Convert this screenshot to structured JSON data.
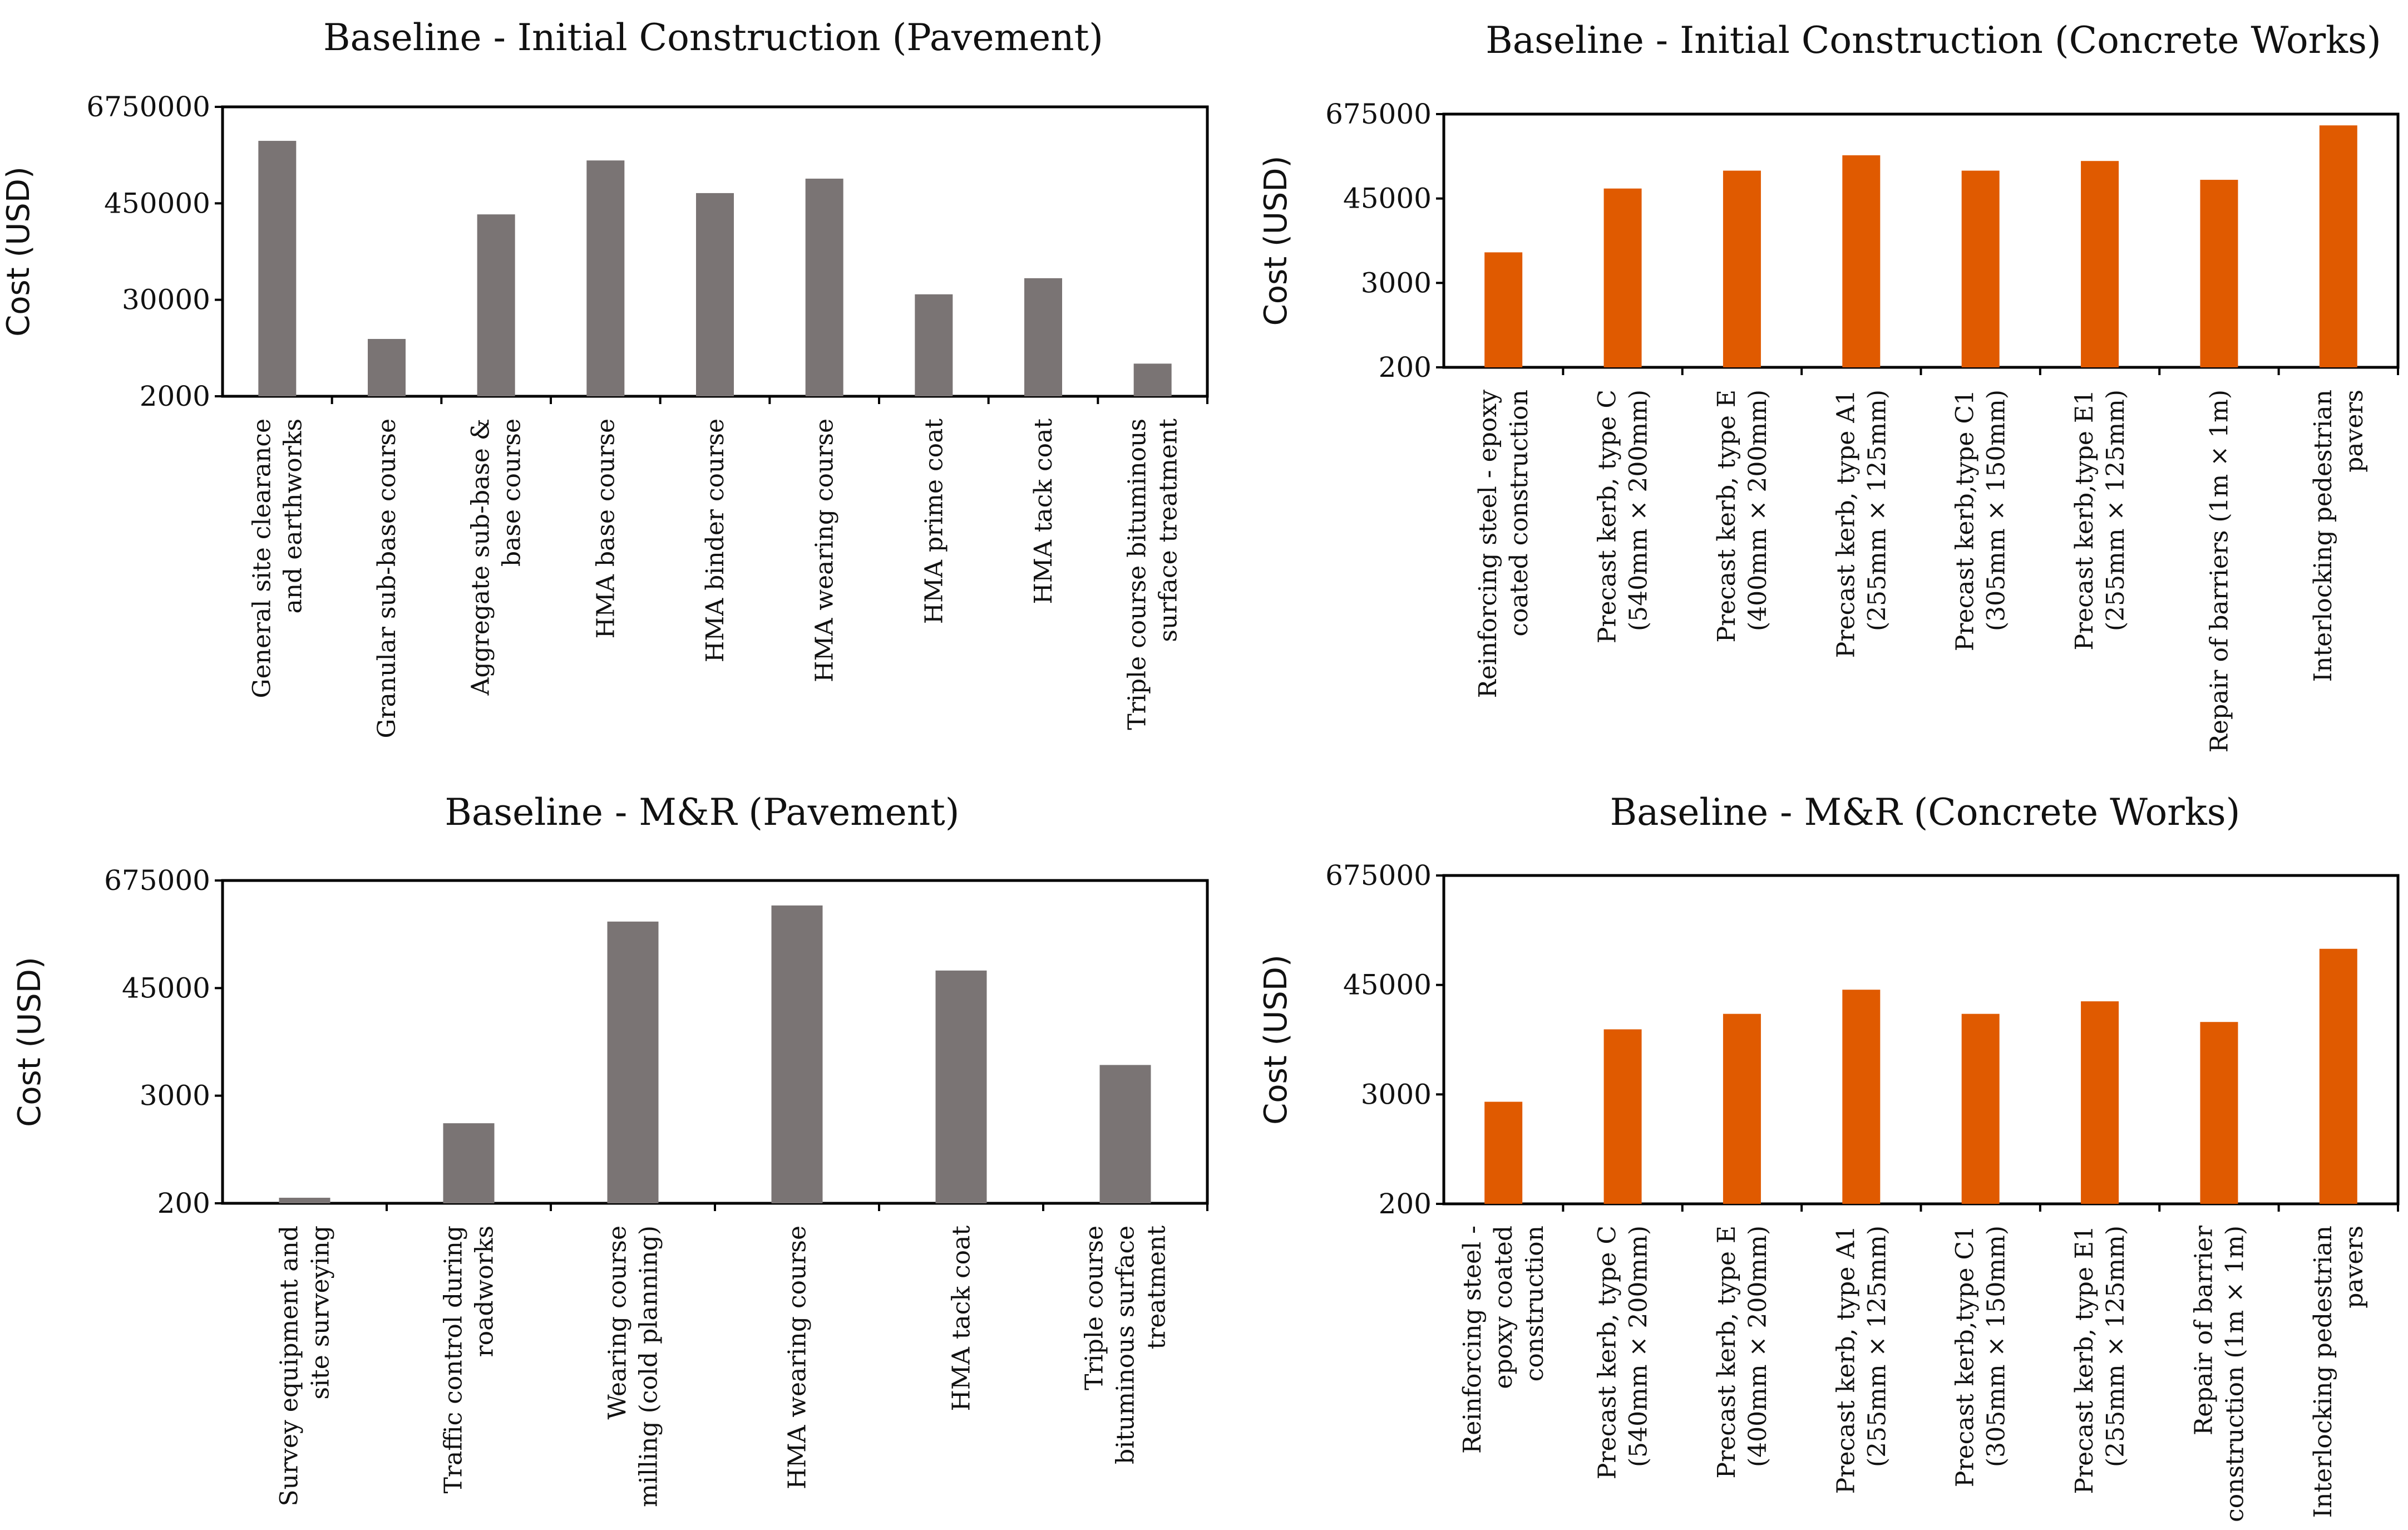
{
  "chart_data": [
    {
      "type": "bar",
      "title": "Baseline - Initial Construction (Pavement)",
      "ylabel": "Cost (USD)",
      "xlabel": "",
      "yscale": "log",
      "ylim": [
        2000,
        6750000
      ],
      "yticks": [
        "2000",
        "30000",
        "450000",
        "6750000"
      ],
      "color": "#7a7474",
      "categories": [
        [
          "General site clearance",
          "and earthworks"
        ],
        [
          "Granular sub-base course"
        ],
        [
          "Aggregate sub-base &",
          "base course"
        ],
        [
          "HMA base course"
        ],
        [
          "HMA binder course"
        ],
        [
          "HMA wearing course"
        ],
        [
          "HMA prime coat"
        ],
        [
          "HMA tack coat"
        ],
        [
          "Triple course bituminous",
          "surface treatment"
        ]
      ],
      "values": [
        2600000,
        10000,
        330000,
        1500000,
        600000,
        900000,
        35000,
        55000,
        5000
      ]
    },
    {
      "type": "bar",
      "title": "Baseline - Initial Construction (Concrete Works)",
      "ylabel": "Cost (USD)",
      "xlabel": "",
      "yscale": "log",
      "ylim": [
        200,
        675000
      ],
      "yticks": [
        "200",
        "3000",
        "45000",
        "675000"
      ],
      "color": "#e05a00",
      "categories": [
        [
          "Reinforcing steel - epoxy",
          "coated construction"
        ],
        [
          "Precast kerb, type C",
          "(540mm × 200mm)"
        ],
        [
          "Precast kerb, type E",
          "(400mm × 200mm)"
        ],
        [
          "Precast kerb, type A1",
          "(255mm × 125mm)"
        ],
        [
          "Precast kerb,type C1",
          "(305mm × 150mm)"
        ],
        [
          "Precast kerb,type E1",
          "(255mm × 125mm)"
        ],
        [
          "Repair of barriers (1m × 1m)"
        ],
        [
          "Interlocking pedestrian",
          "pavers"
        ]
      ],
      "values": [
        8000,
        62000,
        110000,
        180000,
        110000,
        150000,
        82000,
        470000
      ]
    },
    {
      "type": "bar",
      "title": "Baseline - M&R (Pavement)",
      "ylabel": "Cost (USD)",
      "xlabel": "",
      "yscale": "log",
      "ylim": [
        200,
        675000
      ],
      "yticks": [
        "200",
        "3000",
        "45000",
        "675000"
      ],
      "color": "#7a7474",
      "categories": [
        [
          "Survey equipment and",
          "site surveying"
        ],
        [
          "Traffic control during",
          "roadworks"
        ],
        [
          "Wearing course",
          "milling (cold planning)"
        ],
        [
          "HMA wearing course"
        ],
        [
          "HMA tack coat"
        ],
        [
          "Triple course",
          "bituminous surface",
          "treatment"
        ]
      ],
      "values": [
        230,
        1500,
        240000,
        360000,
        70000,
        6500
      ]
    },
    {
      "type": "bar",
      "title": "Baseline - M&R (Concrete Works)",
      "ylabel": "Cost (USD)",
      "xlabel": "",
      "yscale": "log",
      "ylim": [
        200,
        675000
      ],
      "yticks": [
        "200",
        "3000",
        "45000",
        "675000"
      ],
      "color": "#e05a00",
      "categories": [
        [
          "Reinforcing steel -",
          "epoxy coated",
          "construction"
        ],
        [
          "Precast kerb, type C",
          "(540mm × 200mm)"
        ],
        [
          "Precast kerb, type E",
          "(400mm × 200mm)"
        ],
        [
          "Precast kerb, type A1",
          "(255mm × 125mm)"
        ],
        [
          "Precast kerb,type C1",
          "(305mm × 150mm)"
        ],
        [
          "Precast kerb, type E1",
          "(255mm × 125mm)"
        ],
        [
          "Repair of barrier",
          "construction (1m × 1m)"
        ],
        [
          "Interlocking pedestrian",
          "pavers"
        ]
      ],
      "values": [
        2500,
        15000,
        22000,
        40000,
        22000,
        30000,
        18000,
        110000
      ]
    }
  ]
}
